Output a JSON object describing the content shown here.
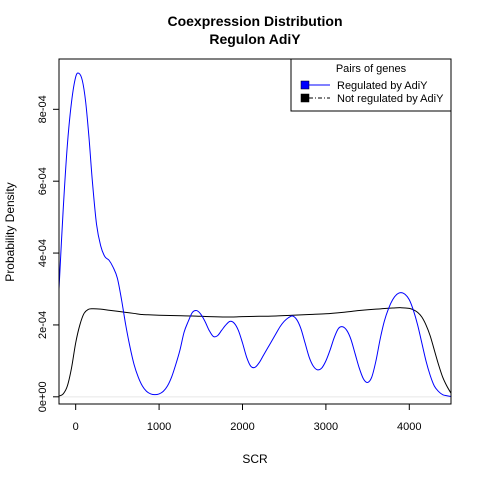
{
  "chart_data": {
    "type": "line",
    "title": "Coexpression Distribution",
    "subtitle": "Regulon AdiY",
    "xlabel": "SCR",
    "ylabel": "Probability Density",
    "xlim": [
      -200,
      4500
    ],
    "ylim": [
      -2e-05,
      0.00094
    ],
    "x_ticks": [
      0,
      1000,
      2000,
      3000,
      4000
    ],
    "x_tick_labels": [
      "0",
      "1000",
      "2000",
      "3000",
      "4000"
    ],
    "y_ticks": [
      0,
      0.0002,
      0.0004,
      0.0006,
      0.0008
    ],
    "y_tick_labels": [
      "0e+00",
      "2e-04",
      "4e-04",
      "6e-04",
      "8e-04"
    ],
    "grid": false,
    "legend": {
      "position": "top-right",
      "title": "Pairs of genes",
      "entries": [
        {
          "label": "Regulated by  AdiY",
          "fill": "#0000ff",
          "line_color": "#0000ff",
          "line_style": "solid"
        },
        {
          "label": "Not regulated by  AdiY",
          "fill": "#000000",
          "line_color": "#000000",
          "line_style": "dashed"
        }
      ]
    },
    "series": [
      {
        "name": "Regulated by  AdiY",
        "color": "#0000ff",
        "x": [
          -200,
          -150,
          -100,
          -50,
          0,
          40,
          80,
          120,
          160,
          200,
          250,
          300,
          350,
          400,
          450,
          500,
          550,
          600,
          650,
          700,
          750,
          800,
          850,
          900,
          950,
          1000,
          1050,
          1100,
          1150,
          1200,
          1250,
          1300,
          1350,
          1400,
          1450,
          1500,
          1550,
          1600,
          1650,
          1700,
          1750,
          1800,
          1850,
          1900,
          1950,
          2000,
          2050,
          2100,
          2150,
          2200,
          2250,
          2300,
          2350,
          2400,
          2450,
          2500,
          2550,
          2600,
          2650,
          2700,
          2750,
          2800,
          2850,
          2900,
          2950,
          3000,
          3050,
          3100,
          3150,
          3200,
          3250,
          3300,
          3350,
          3400,
          3450,
          3500,
          3550,
          3600,
          3650,
          3700,
          3750,
          3800,
          3850,
          3900,
          3950,
          4000,
          4050,
          4100,
          4150,
          4200,
          4250,
          4300,
          4350,
          4400,
          4450,
          4500
        ],
        "y": [
          0.0003,
          0.00052,
          0.0007,
          0.00082,
          0.00089,
          0.0009,
          0.00088,
          0.00082,
          0.00072,
          0.0006,
          0.00048,
          0.00042,
          0.00039,
          0.00038,
          0.00036,
          0.00033,
          0.00027,
          0.0002,
          0.00014,
          9e-05,
          5.5e-05,
          3e-05,
          1.5e-05,
          8e-06,
          6e-06,
          8e-06,
          1.5e-05,
          3e-05,
          5.5e-05,
          9e-05,
          0.00013,
          0.00018,
          0.00021,
          0.000235,
          0.00024,
          0.00023,
          0.00021,
          0.000185,
          0.000168,
          0.00017,
          0.000185,
          0.0002,
          0.00021,
          0.000205,
          0.000185,
          0.00015,
          0.00011,
          8.5e-05,
          8.2e-05,
          9.5e-05,
          0.000115,
          0.000135,
          0.000155,
          0.000175,
          0.000195,
          0.00021,
          0.00022,
          0.000225,
          0.000215,
          0.00019,
          0.00015,
          0.00011,
          8.5e-05,
          7.5e-05,
          8e-05,
          0.0001,
          0.00013,
          0.000165,
          0.00019,
          0.000195,
          0.000185,
          0.00016,
          0.00012,
          8e-05,
          5e-05,
          4e-05,
          5.5e-05,
          0.0001,
          0.00016,
          0.00021,
          0.000245,
          0.00027,
          0.000285,
          0.00029,
          0.000285,
          0.00027,
          0.00024,
          0.0002,
          0.00015,
          0.0001,
          6e-05,
          3e-05,
          1.5e-05,
          6e-06,
          3e-06,
          1e-06
        ]
      },
      {
        "name": "Not regulated by  AdiY",
        "color": "#000000",
        "x": [
          -200,
          -150,
          -100,
          -50,
          0,
          50,
          100,
          150,
          200,
          300,
          400,
          500,
          600,
          700,
          800,
          900,
          1000,
          1200,
          1400,
          1600,
          1800,
          2000,
          2200,
          2400,
          2600,
          2800,
          3000,
          3200,
          3400,
          3600,
          3800,
          3900,
          4000,
          4050,
          4100,
          4150,
          4200,
          4250,
          4300,
          4350,
          4400,
          4450,
          4500
        ],
        "y": [
          2e-06,
          8e-06,
          3e-05,
          8e-05,
          0.00015,
          0.0002,
          0.000232,
          0.000243,
          0.000245,
          0.000244,
          0.000241,
          0.000238,
          0.000235,
          0.000232,
          0.000229,
          0.000228,
          0.000227,
          0.000226,
          0.000225,
          0.000223,
          0.000222,
          0.000223,
          0.000224,
          0.000225,
          0.000227,
          0.000229,
          0.000231,
          0.000235,
          0.00024,
          0.000244,
          0.000247,
          0.000248,
          0.000246,
          0.000242,
          0.000235,
          0.000222,
          0.0002,
          0.00017,
          0.00013,
          9e-05,
          5.5e-05,
          3e-05,
          1e-05
        ]
      }
    ]
  }
}
